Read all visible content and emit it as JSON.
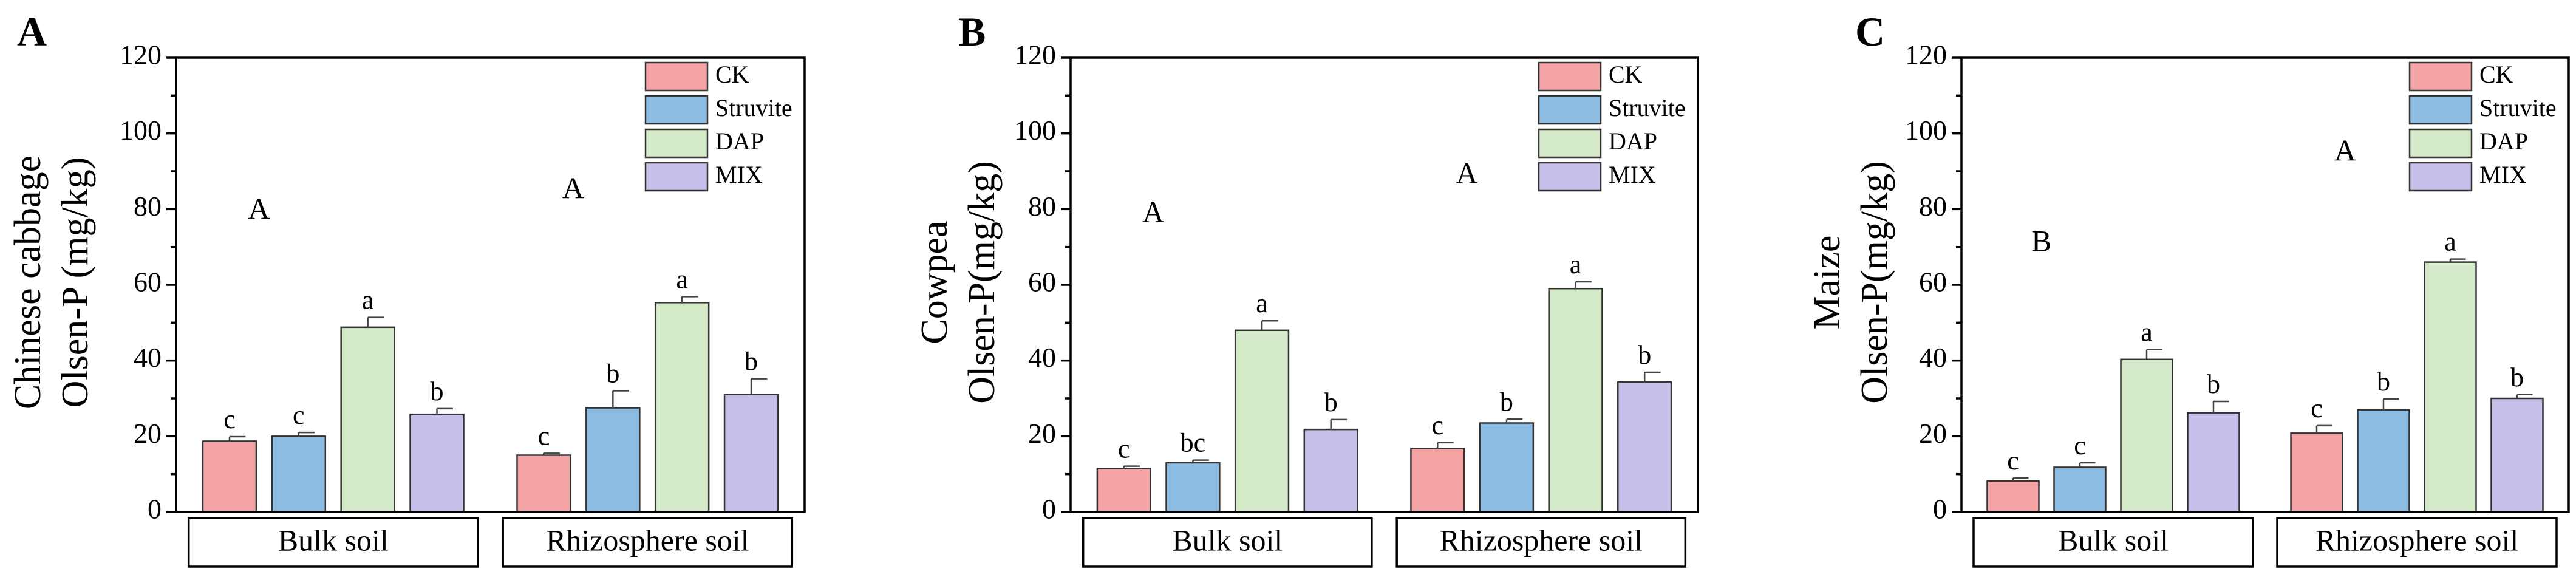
{
  "chart_data": [
    {
      "type": "bar",
      "panel_label": "A",
      "ylabel_line1": "Chinese cabbage",
      "ylabel_line2": "Olsen-P (mg/kg)",
      "ylim": [
        0,
        120
      ],
      "yticks": [
        "0",
        "20",
        "40",
        "60",
        "80",
        "100",
        "120"
      ],
      "categories": [
        "Bulk soil",
        "Rhizosphere soil"
      ],
      "group_letters": [
        "A",
        "A"
      ],
      "legend_position": "top-right",
      "series": [
        {
          "name": "CK",
          "color": "#F4A3A4",
          "values": [
            18.7,
            15.0
          ],
          "errors": [
            1.2,
            0.5
          ],
          "letters": [
            "c",
            "c"
          ]
        },
        {
          "name": "Struvite",
          "color": "#8DBCE3",
          "values": [
            20.0,
            27.5
          ],
          "errors": [
            1.0,
            4.5
          ],
          "letters": [
            "c",
            "b"
          ]
        },
        {
          "name": "DAP",
          "color": "#D5EAC8",
          "values": [
            48.8,
            55.3
          ],
          "errors": [
            2.6,
            1.6
          ],
          "letters": [
            "a",
            "a"
          ]
        },
        {
          "name": "MIX",
          "color": "#C6C0EA",
          "values": [
            25.8,
            31.0
          ],
          "errors": [
            1.5,
            4.2
          ],
          "letters": [
            "b",
            "b"
          ]
        }
      ]
    },
    {
      "type": "bar",
      "panel_label": "B",
      "ylabel_line1": "Cowpea",
      "ylabel_line2": "Olsen-P(mg/kg)",
      "ylim": [
        0,
        120
      ],
      "yticks": [
        "0",
        "20",
        "40",
        "60",
        "80",
        "100",
        "120"
      ],
      "categories": [
        "Bulk soil",
        "Rhizosphere soil"
      ],
      "group_letters": [
        "A",
        "A"
      ],
      "legend_position": "top-right",
      "series": [
        {
          "name": "CK",
          "color": "#F4A3A4",
          "values": [
            11.5,
            16.8
          ],
          "errors": [
            0.6,
            1.5
          ],
          "letters": [
            "c",
            "c"
          ]
        },
        {
          "name": "Struvite",
          "color": "#8DBCE3",
          "values": [
            13.0,
            23.5
          ],
          "errors": [
            0.7,
            1.0
          ],
          "letters": [
            "bc",
            "b"
          ]
        },
        {
          "name": "DAP",
          "color": "#D5EAC8",
          "values": [
            48.0,
            59.0
          ],
          "errors": [
            2.5,
            1.8
          ],
          "letters": [
            "a",
            "a"
          ]
        },
        {
          "name": "MIX",
          "color": "#C6C0EA",
          "values": [
            21.8,
            34.3
          ],
          "errors": [
            2.6,
            2.6
          ],
          "letters": [
            "b",
            "b"
          ]
        }
      ]
    },
    {
      "type": "bar",
      "panel_label": "C",
      "ylabel_line1": "Maize",
      "ylabel_line2": "Olsen-P(mg/kg)",
      "ylim": [
        0,
        120
      ],
      "yticks": [
        "0",
        "20",
        "40",
        "60",
        "80",
        "100",
        "120"
      ],
      "categories": [
        "Bulk soil",
        "Rhizosphere soil"
      ],
      "group_letters": [
        "B",
        "A"
      ],
      "legend_position": "top-right",
      "series": [
        {
          "name": "CK",
          "color": "#F4A3A4",
          "values": [
            8.2,
            20.8
          ],
          "errors": [
            0.8,
            2.0
          ],
          "letters": [
            "c",
            "c"
          ]
        },
        {
          "name": "Struvite",
          "color": "#8DBCE3",
          "values": [
            11.8,
            27.0
          ],
          "errors": [
            1.2,
            2.8
          ],
          "letters": [
            "c",
            "b"
          ]
        },
        {
          "name": "DAP",
          "color": "#D5EAC8",
          "values": [
            40.3,
            66.0
          ],
          "errors": [
            2.6,
            0.8
          ],
          "letters": [
            "a",
            "a"
          ]
        },
        {
          "name": "MIX",
          "color": "#C6C0EA",
          "values": [
            26.2,
            30.0
          ],
          "errors": [
            3.0,
            1.0
          ],
          "letters": [
            "b",
            "b"
          ]
        }
      ]
    }
  ]
}
